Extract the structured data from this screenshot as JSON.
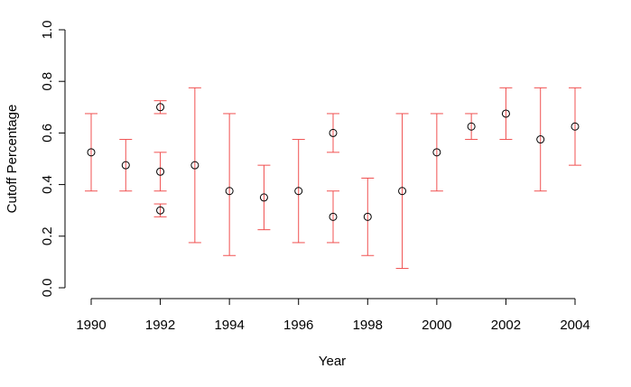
{
  "chart_data": {
    "type": "scatter",
    "title": "",
    "xlabel": "Year",
    "ylabel": "Cutoff Percentage",
    "xlim": [
      1990,
      2004
    ],
    "ylim": [
      0,
      1
    ],
    "x_ticks": [
      "1990",
      "1992",
      "1994",
      "1996",
      "1998",
      "2000",
      "2002",
      "2004"
    ],
    "y_ticks": [
      "0.0",
      "0.2",
      "0.4",
      "0.6",
      "0.8",
      "1.0"
    ],
    "grid": false,
    "error_bar_color": "#f05050",
    "point_color": "#000000",
    "points": [
      {
        "x": 1990,
        "y": 0.525,
        "low": 0.375,
        "high": 0.675
      },
      {
        "x": 1991,
        "y": 0.475,
        "low": 0.375,
        "high": 0.575
      },
      {
        "x": 1992,
        "y": 0.7,
        "low": 0.675,
        "high": 0.725
      },
      {
        "x": 1992,
        "y": 0.45,
        "low": 0.375,
        "high": 0.525
      },
      {
        "x": 1992,
        "y": 0.3,
        "low": 0.275,
        "high": 0.325
      },
      {
        "x": 1993,
        "y": 0.475,
        "low": 0.175,
        "high": 0.775
      },
      {
        "x": 1994,
        "y": 0.375,
        "low": 0.125,
        "high": 0.675
      },
      {
        "x": 1995,
        "y": 0.35,
        "low": 0.225,
        "high": 0.475
      },
      {
        "x": 1996,
        "y": 0.375,
        "low": 0.175,
        "high": 0.575
      },
      {
        "x": 1997,
        "y": 0.6,
        "low": 0.525,
        "high": 0.675
      },
      {
        "x": 1997,
        "y": 0.275,
        "low": 0.175,
        "high": 0.375
      },
      {
        "x": 1998,
        "y": 0.275,
        "low": 0.125,
        "high": 0.425
      },
      {
        "x": 1999,
        "y": 0.375,
        "low": 0.075,
        "high": 0.675
      },
      {
        "x": 2000,
        "y": 0.525,
        "low": 0.375,
        "high": 0.675
      },
      {
        "x": 2001,
        "y": 0.625,
        "low": 0.575,
        "high": 0.675
      },
      {
        "x": 2002,
        "y": 0.675,
        "low": 0.575,
        "high": 0.775
      },
      {
        "x": 2003,
        "y": 0.575,
        "low": 0.375,
        "high": 0.775
      },
      {
        "x": 2004,
        "y": 0.625,
        "low": 0.475,
        "high": 0.775
      }
    ]
  }
}
